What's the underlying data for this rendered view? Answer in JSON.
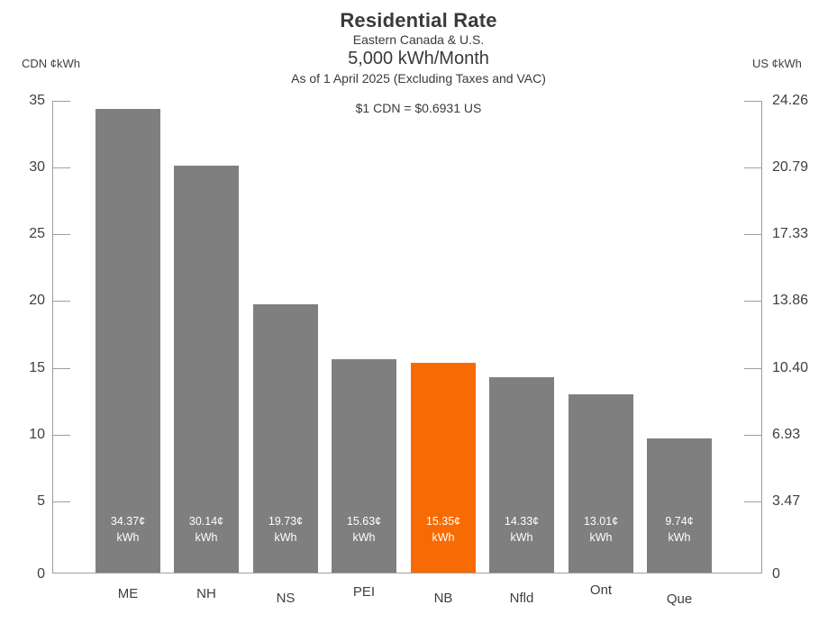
{
  "header": {
    "title": "Residential Rate",
    "subtitle_region": "Eastern Canada & U.S.",
    "subtitle_consumption": "5,000 kWh/Month",
    "subtitle_date": "As of 1 April 2025 (Excluding Taxes and VAC)",
    "exchange_rate_note": "$1 CDN = $0.6931 US"
  },
  "axes": {
    "left": {
      "title": "CDN ¢kWh",
      "tick_values": [
        5,
        10,
        15,
        20,
        25,
        30,
        35
      ],
      "tick_labels": [
        "5",
        "10",
        "15",
        "20",
        "25",
        "30",
        "35"
      ],
      "zero_label": "0"
    },
    "right": {
      "title": "US ¢kWh",
      "tick_labels": [
        "3.47",
        "6.93",
        "10.40",
        "13.86",
        "17.33",
        "20.79",
        "24.26"
      ],
      "zero_label": "0"
    }
  },
  "chart_data": {
    "type": "bar",
    "title": "Residential Rate",
    "subtitle": "Eastern Canada & U.S. — 5,000 kWh/Month — As of 1 April 2025 (Excluding Taxes and VAC)",
    "exchange_rate": "$1 CDN = $0.6931 US",
    "categories": [
      "ME",
      "NH",
      "NS",
      "PEI",
      "NB",
      "Nfld",
      "Ont",
      "Que"
    ],
    "values": [
      34.37,
      30.14,
      19.73,
      15.63,
      15.35,
      14.33,
      13.01,
      9.74
    ],
    "value_labels": [
      "34.37¢",
      "30.14¢",
      "19.73¢",
      "15.63¢",
      "15.35¢",
      "14.33¢",
      "13.01¢",
      "9.74¢"
    ],
    "unit_label": "kWh",
    "highlight_index": 4,
    "highlight_category": "NB",
    "bar_color": "#7f7f7f",
    "highlight_color": "#f76b04",
    "label_text_color": "#ffffff",
    "ylabel_left": "CDN ¢kWh",
    "ylabel_right": "US ¢kWh",
    "ylim": [
      0,
      35
    ],
    "right_axis_ticks": [
      3.47,
      6.93,
      10.4,
      13.86,
      17.33,
      20.79,
      24.26
    ],
    "grid": false,
    "legend": false
  }
}
